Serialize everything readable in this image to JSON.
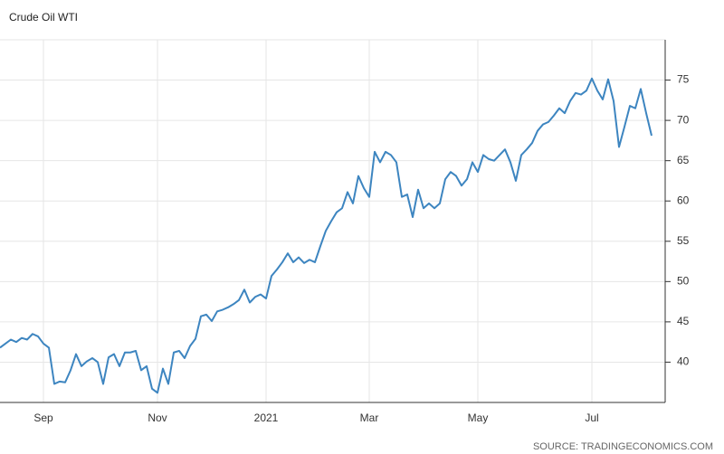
{
  "chart_data": {
    "type": "line",
    "title": "Crude Oil WTI",
    "source": "SOURCE: TRADINGECONOMICS.COM",
    "categories": [
      null,
      null,
      null,
      null,
      null,
      null,
      null,
      null,
      "Sep",
      null,
      null,
      null,
      null,
      null,
      null,
      null,
      null,
      null,
      null,
      null,
      null,
      null,
      null,
      null,
      null,
      null,
      null,
      null,
      null,
      "Nov",
      null,
      null,
      null,
      null,
      null,
      null,
      null,
      null,
      null,
      null,
      null,
      null,
      null,
      null,
      null,
      null,
      null,
      null,
      null,
      "2021",
      null,
      null,
      null,
      null,
      null,
      null,
      null,
      null,
      null,
      null,
      null,
      null,
      null,
      null,
      null,
      null,
      null,
      null,
      "Mar",
      null,
      null,
      null,
      null,
      null,
      null,
      null,
      null,
      null,
      null,
      null,
      null,
      null,
      null,
      null,
      null,
      null,
      null,
      null,
      "May",
      null,
      null,
      null,
      null,
      null,
      null,
      null,
      null,
      null,
      null,
      null,
      null,
      null,
      null,
      null,
      null,
      null,
      null,
      null,
      null,
      "Jul",
      null,
      null,
      null,
      null,
      null,
      null,
      null,
      null,
      null,
      null,
      null
    ],
    "values": [
      41.8,
      42.3,
      42.8,
      42.5,
      43,
      42.8,
      43.5,
      43.2,
      42.3,
      41.8,
      37.3,
      37.6,
      37.5,
      39,
      41,
      39.5,
      40.1,
      40.5,
      40,
      37.3,
      40.6,
      41,
      39.5,
      41.2,
      41.2,
      41.4,
      39,
      39.5,
      36.7,
      36.2,
      39.2,
      37.3,
      41.2,
      41.4,
      40.5,
      42,
      42.9,
      45.7,
      45.9,
      45.1,
      46.3,
      46.5,
      46.8,
      47.2,
      47.7,
      49,
      47.4,
      48.1,
      48.4,
      47.9,
      50.7,
      51.5,
      52.4,
      53.5,
      52.4,
      53,
      52.3,
      52.7,
      52.4,
      54.4,
      56.3,
      57.5,
      58.6,
      59.1,
      61.1,
      59.7,
      63.1,
      61.6,
      60.5,
      66.1,
      64.8,
      66.1,
      65.7,
      64.8,
      60.5,
      60.8,
      58,
      61.4,
      59.1,
      59.7,
      59.1,
      59.7,
      62.7,
      63.6,
      63.1,
      61.9,
      62.7,
      64.8,
      63.6,
      65.7,
      65.2,
      65,
      65.7,
      66.4,
      64.8,
      62.5,
      65.7,
      66.4,
      67.2,
      68.7,
      69.5,
      69.8,
      70.6,
      71.5,
      70.9,
      72.4,
      73.4,
      73.2,
      73.7,
      75.2,
      73.7,
      72.6,
      75.1,
      72.4,
      66.7,
      69.2,
      71.8,
      71.5,
      73.9,
      70.9,
      68.1
    ],
    "color": "#3d85c0",
    "ylim": [
      35,
      80
    ],
    "yticks": [
      40,
      45,
      50,
      55,
      60,
      65,
      70,
      75
    ],
    "grid": true
  }
}
